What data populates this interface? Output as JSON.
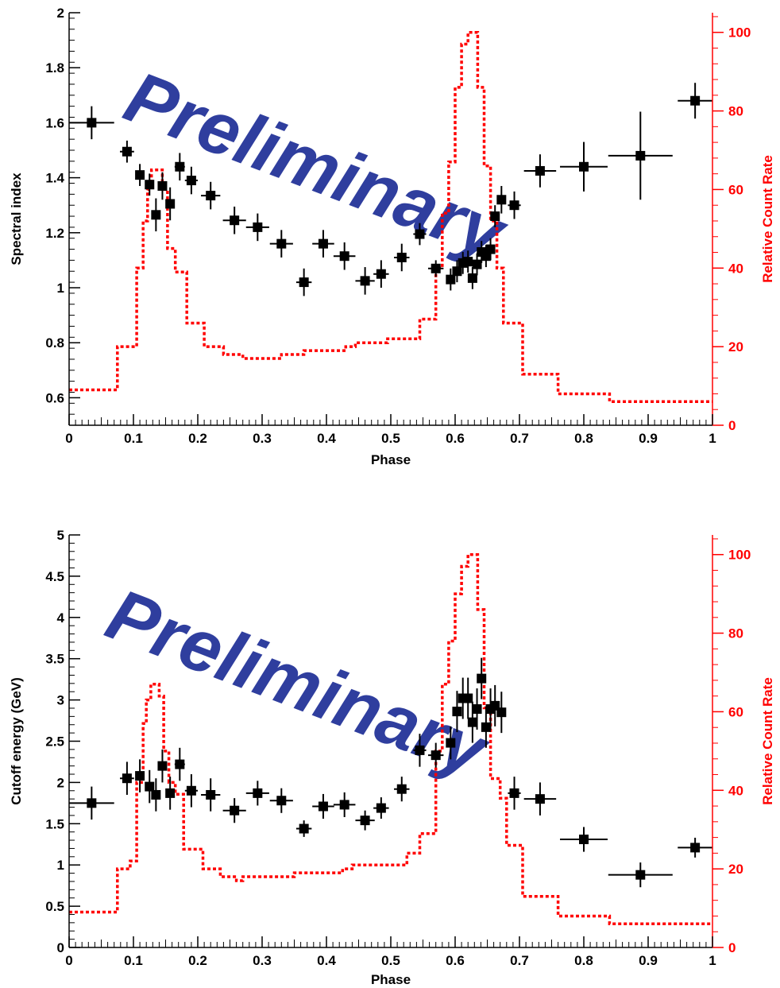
{
  "colors": {
    "points": "#000000",
    "curve": "#ff0000",
    "watermark": "#2f3e9e"
  },
  "chart_data": [
    {
      "type": "scatter",
      "watermark": "Preliminary",
      "xlabel": "Phase",
      "ylabel": "Spectral index",
      "y2label": "Relative Count Rate",
      "xlim": [
        0,
        1
      ],
      "ylim": [
        0.5,
        2
      ],
      "y2lim": [
        0,
        105
      ],
      "xticks": [
        "0",
        "0.1",
        "0.2",
        "0.3",
        "0.4",
        "0.5",
        "0.6",
        "0.7",
        "0.8",
        "0.9",
        "1"
      ],
      "yticks": [
        "0.6",
        "0.8",
        "1",
        "1.2",
        "1.4",
        "1.6",
        "1.8",
        "2"
      ],
      "y2ticks": [
        "0",
        "20",
        "40",
        "60",
        "80",
        "100"
      ],
      "points": [
        {
          "x": 0.035,
          "y": 1.6,
          "xerr": 0.035,
          "yerr": 0.06
        },
        {
          "x": 0.09,
          "y": 1.495,
          "xerr": 0.011,
          "yerr": 0.04
        },
        {
          "x": 0.11,
          "y": 1.41,
          "xerr": 0.007,
          "yerr": 0.04
        },
        {
          "x": 0.125,
          "y": 1.375,
          "xerr": 0.006,
          "yerr": 0.04
        },
        {
          "x": 0.135,
          "y": 1.265,
          "xerr": 0.005,
          "yerr": 0.06
        },
        {
          "x": 0.145,
          "y": 1.37,
          "xerr": 0.005,
          "yerr": 0.05
        },
        {
          "x": 0.157,
          "y": 1.305,
          "xerr": 0.006,
          "yerr": 0.06
        },
        {
          "x": 0.172,
          "y": 1.44,
          "xerr": 0.008,
          "yerr": 0.05
        },
        {
          "x": 0.19,
          "y": 1.39,
          "xerr": 0.01,
          "yerr": 0.05
        },
        {
          "x": 0.22,
          "y": 1.335,
          "xerr": 0.015,
          "yerr": 0.05
        },
        {
          "x": 0.257,
          "y": 1.245,
          "xerr": 0.018,
          "yerr": 0.05
        },
        {
          "x": 0.293,
          "y": 1.22,
          "xerr": 0.018,
          "yerr": 0.05
        },
        {
          "x": 0.33,
          "y": 1.16,
          "xerr": 0.018,
          "yerr": 0.05
        },
        {
          "x": 0.365,
          "y": 1.02,
          "xerr": 0.012,
          "yerr": 0.05
        },
        {
          "x": 0.395,
          "y": 1.16,
          "xerr": 0.017,
          "yerr": 0.05
        },
        {
          "x": 0.428,
          "y": 1.115,
          "xerr": 0.017,
          "yerr": 0.05
        },
        {
          "x": 0.46,
          "y": 1.025,
          "xerr": 0.015,
          "yerr": 0.05
        },
        {
          "x": 0.485,
          "y": 1.05,
          "xerr": 0.012,
          "yerr": 0.05
        },
        {
          "x": 0.517,
          "y": 1.11,
          "xerr": 0.012,
          "yerr": 0.05
        },
        {
          "x": 0.545,
          "y": 1.195,
          "xerr": 0.01,
          "yerr": 0.04
        },
        {
          "x": 0.57,
          "y": 1.07,
          "xerr": 0.012,
          "yerr": 0.03
        },
        {
          "x": 0.593,
          "y": 1.03,
          "xerr": 0.007,
          "yerr": 0.04
        },
        {
          "x": 0.603,
          "y": 1.06,
          "xerr": 0.005,
          "yerr": 0.04
        },
        {
          "x": 0.612,
          "y": 1.09,
          "xerr": 0.004,
          "yerr": 0.04
        },
        {
          "x": 0.62,
          "y": 1.095,
          "xerr": 0.004,
          "yerr": 0.04
        },
        {
          "x": 0.627,
          "y": 1.035,
          "xerr": 0.004,
          "yerr": 0.04
        },
        {
          "x": 0.634,
          "y": 1.085,
          "xerr": 0.004,
          "yerr": 0.04
        },
        {
          "x": 0.641,
          "y": 1.13,
          "xerr": 0.004,
          "yerr": 0.04
        },
        {
          "x": 0.648,
          "y": 1.115,
          "xerr": 0.004,
          "yerr": 0.04
        },
        {
          "x": 0.655,
          "y": 1.14,
          "xerr": 0.004,
          "yerr": 0.04
        },
        {
          "x": 0.662,
          "y": 1.26,
          "xerr": 0.004,
          "yerr": 0.04
        },
        {
          "x": 0.672,
          "y": 1.32,
          "xerr": 0.006,
          "yerr": 0.05
        },
        {
          "x": 0.692,
          "y": 1.3,
          "xerr": 0.01,
          "yerr": 0.05
        },
        {
          "x": 0.732,
          "y": 1.425,
          "xerr": 0.025,
          "yerr": 0.06
        },
        {
          "x": 0.8,
          "y": 1.44,
          "xerr": 0.037,
          "yerr": 0.09
        },
        {
          "x": 0.888,
          "y": 1.48,
          "xerr": 0.05,
          "yerr": 0.16
        },
        {
          "x": 0.973,
          "y": 1.68,
          "xerr": 0.027,
          "yerr": 0.065
        }
      ],
      "curve": [
        [
          0.0,
          9
        ],
        [
          0.075,
          9
        ],
        [
          0.075,
          20
        ],
        [
          0.105,
          20
        ],
        [
          0.105,
          40
        ],
        [
          0.115,
          40
        ],
        [
          0.115,
          52
        ],
        [
          0.122,
          52
        ],
        [
          0.122,
          60
        ],
        [
          0.128,
          60
        ],
        [
          0.128,
          65
        ],
        [
          0.145,
          65
        ],
        [
          0.145,
          60
        ],
        [
          0.153,
          60
        ],
        [
          0.153,
          45
        ],
        [
          0.165,
          45
        ],
        [
          0.165,
          39
        ],
        [
          0.183,
          39
        ],
        [
          0.183,
          26
        ],
        [
          0.21,
          26
        ],
        [
          0.21,
          20
        ],
        [
          0.24,
          20
        ],
        [
          0.24,
          18
        ],
        [
          0.27,
          18
        ],
        [
          0.27,
          17
        ],
        [
          0.33,
          17
        ],
        [
          0.33,
          18
        ],
        [
          0.365,
          18
        ],
        [
          0.365,
          19
        ],
        [
          0.43,
          19
        ],
        [
          0.43,
          20
        ],
        [
          0.445,
          20
        ],
        [
          0.445,
          21
        ],
        [
          0.495,
          21
        ],
        [
          0.495,
          22
        ],
        [
          0.545,
          22
        ],
        [
          0.545,
          27
        ],
        [
          0.57,
          27
        ],
        [
          0.57,
          40
        ],
        [
          0.58,
          40
        ],
        [
          0.58,
          54
        ],
        [
          0.59,
          54
        ],
        [
          0.59,
          67
        ],
        [
          0.6,
          67
        ],
        [
          0.6,
          86
        ],
        [
          0.61,
          86
        ],
        [
          0.61,
          97
        ],
        [
          0.62,
          97
        ],
        [
          0.62,
          100
        ],
        [
          0.635,
          100
        ],
        [
          0.635,
          86
        ],
        [
          0.645,
          86
        ],
        [
          0.645,
          66
        ],
        [
          0.655,
          66
        ],
        [
          0.655,
          52
        ],
        [
          0.665,
          52
        ],
        [
          0.665,
          40
        ],
        [
          0.675,
          40
        ],
        [
          0.675,
          26
        ],
        [
          0.705,
          26
        ],
        [
          0.705,
          13
        ],
        [
          0.76,
          13
        ],
        [
          0.76,
          8
        ],
        [
          0.84,
          8
        ],
        [
          0.84,
          6
        ],
        [
          1.0,
          6
        ]
      ]
    },
    {
      "type": "scatter",
      "watermark": "Preliminary",
      "xlabel": "Phase",
      "ylabel": "Cutoff energy (GeV)",
      "y2label": "Relative Count Rate",
      "xlim": [
        0,
        1
      ],
      "ylim": [
        0,
        5
      ],
      "y2lim": [
        0,
        105
      ],
      "xticks": [
        "0",
        "0.1",
        "0.2",
        "0.3",
        "0.4",
        "0.5",
        "0.6",
        "0.7",
        "0.8",
        "0.9",
        "1"
      ],
      "yticks": [
        "0",
        "0.5",
        "1",
        "1.5",
        "2",
        "2.5",
        "3",
        "3.5",
        "4",
        "4.5",
        "5"
      ],
      "y2ticks": [
        "0",
        "20",
        "40",
        "60",
        "80",
        "100"
      ],
      "points": [
        {
          "x": 0.035,
          "y": 1.75,
          "xerr": 0.035,
          "yerr": 0.2
        },
        {
          "x": 0.09,
          "y": 2.05,
          "xerr": 0.011,
          "yerr": 0.2
        },
        {
          "x": 0.11,
          "y": 2.08,
          "xerr": 0.007,
          "yerr": 0.2
        },
        {
          "x": 0.125,
          "y": 1.95,
          "xerr": 0.006,
          "yerr": 0.2
        },
        {
          "x": 0.135,
          "y": 1.85,
          "xerr": 0.005,
          "yerr": 0.2
        },
        {
          "x": 0.145,
          "y": 2.2,
          "xerr": 0.005,
          "yerr": 0.2
        },
        {
          "x": 0.157,
          "y": 1.87,
          "xerr": 0.006,
          "yerr": 0.2
        },
        {
          "x": 0.172,
          "y": 2.22,
          "xerr": 0.008,
          "yerr": 0.2
        },
        {
          "x": 0.19,
          "y": 1.9,
          "xerr": 0.01,
          "yerr": 0.2
        },
        {
          "x": 0.22,
          "y": 1.85,
          "xerr": 0.015,
          "yerr": 0.2
        },
        {
          "x": 0.257,
          "y": 1.66,
          "xerr": 0.018,
          "yerr": 0.15
        },
        {
          "x": 0.293,
          "y": 1.87,
          "xerr": 0.018,
          "yerr": 0.15
        },
        {
          "x": 0.33,
          "y": 1.78,
          "xerr": 0.018,
          "yerr": 0.15
        },
        {
          "x": 0.365,
          "y": 1.44,
          "xerr": 0.012,
          "yerr": 0.1
        },
        {
          "x": 0.395,
          "y": 1.71,
          "xerr": 0.017,
          "yerr": 0.15
        },
        {
          "x": 0.428,
          "y": 1.73,
          "xerr": 0.017,
          "yerr": 0.15
        },
        {
          "x": 0.46,
          "y": 1.54,
          "xerr": 0.015,
          "yerr": 0.12
        },
        {
          "x": 0.485,
          "y": 1.69,
          "xerr": 0.012,
          "yerr": 0.13
        },
        {
          "x": 0.517,
          "y": 1.92,
          "xerr": 0.012,
          "yerr": 0.15
        },
        {
          "x": 0.545,
          "y": 2.39,
          "xerr": 0.01,
          "yerr": 0.2
        },
        {
          "x": 0.57,
          "y": 2.33,
          "xerr": 0.012,
          "yerr": 0.15
        },
        {
          "x": 0.593,
          "y": 2.48,
          "xerr": 0.007,
          "yerr": 0.2
        },
        {
          "x": 0.603,
          "y": 2.86,
          "xerr": 0.005,
          "yerr": 0.25
        },
        {
          "x": 0.612,
          "y": 3.02,
          "xerr": 0.004,
          "yerr": 0.25
        },
        {
          "x": 0.62,
          "y": 3.02,
          "xerr": 0.004,
          "yerr": 0.25
        },
        {
          "x": 0.627,
          "y": 2.73,
          "xerr": 0.004,
          "yerr": 0.25
        },
        {
          "x": 0.634,
          "y": 2.89,
          "xerr": 0.004,
          "yerr": 0.25
        },
        {
          "x": 0.641,
          "y": 3.26,
          "xerr": 0.004,
          "yerr": 0.25
        },
        {
          "x": 0.648,
          "y": 2.67,
          "xerr": 0.004,
          "yerr": 0.25
        },
        {
          "x": 0.655,
          "y": 2.89,
          "xerr": 0.004,
          "yerr": 0.25
        },
        {
          "x": 0.662,
          "y": 2.93,
          "xerr": 0.004,
          "yerr": 0.25
        },
        {
          "x": 0.672,
          "y": 2.85,
          "xerr": 0.006,
          "yerr": 0.25
        },
        {
          "x": 0.692,
          "y": 1.87,
          "xerr": 0.01,
          "yerr": 0.2
        },
        {
          "x": 0.732,
          "y": 1.8,
          "xerr": 0.025,
          "yerr": 0.2
        },
        {
          "x": 0.8,
          "y": 1.31,
          "xerr": 0.037,
          "yerr": 0.15
        },
        {
          "x": 0.888,
          "y": 0.88,
          "xerr": 0.05,
          "yerr": 0.15
        },
        {
          "x": 0.973,
          "y": 1.21,
          "xerr": 0.027,
          "yerr": 0.12
        }
      ],
      "curve": [
        [
          0.0,
          9
        ],
        [
          0.075,
          9
        ],
        [
          0.075,
          20
        ],
        [
          0.095,
          20
        ],
        [
          0.095,
          22
        ],
        [
          0.105,
          22
        ],
        [
          0.105,
          42
        ],
        [
          0.115,
          42
        ],
        [
          0.115,
          57
        ],
        [
          0.12,
          57
        ],
        [
          0.12,
          63
        ],
        [
          0.127,
          63
        ],
        [
          0.127,
          67
        ],
        [
          0.14,
          67
        ],
        [
          0.14,
          64
        ],
        [
          0.147,
          64
        ],
        [
          0.147,
          50
        ],
        [
          0.155,
          50
        ],
        [
          0.155,
          42
        ],
        [
          0.165,
          42
        ],
        [
          0.165,
          39
        ],
        [
          0.178,
          39
        ],
        [
          0.178,
          25
        ],
        [
          0.208,
          25
        ],
        [
          0.208,
          20
        ],
        [
          0.235,
          20
        ],
        [
          0.235,
          18
        ],
        [
          0.26,
          18
        ],
        [
          0.26,
          17
        ],
        [
          0.27,
          17
        ],
        [
          0.27,
          18
        ],
        [
          0.35,
          18
        ],
        [
          0.35,
          19
        ],
        [
          0.425,
          19
        ],
        [
          0.425,
          20
        ],
        [
          0.44,
          20
        ],
        [
          0.44,
          21
        ],
        [
          0.525,
          21
        ],
        [
          0.525,
          24
        ],
        [
          0.545,
          24
        ],
        [
          0.545,
          29
        ],
        [
          0.57,
          29
        ],
        [
          0.57,
          50
        ],
        [
          0.58,
          50
        ],
        [
          0.58,
          67
        ],
        [
          0.59,
          67
        ],
        [
          0.59,
          78
        ],
        [
          0.6,
          78
        ],
        [
          0.6,
          90
        ],
        [
          0.61,
          90
        ],
        [
          0.61,
          97
        ],
        [
          0.62,
          97
        ],
        [
          0.62,
          100
        ],
        [
          0.635,
          100
        ],
        [
          0.635,
          86
        ],
        [
          0.645,
          86
        ],
        [
          0.645,
          61
        ],
        [
          0.655,
          61
        ],
        [
          0.655,
          43
        ],
        [
          0.67,
          43
        ],
        [
          0.67,
          38
        ],
        [
          0.68,
          38
        ],
        [
          0.68,
          26
        ],
        [
          0.705,
          26
        ],
        [
          0.705,
          13
        ],
        [
          0.76,
          13
        ],
        [
          0.76,
          8
        ],
        [
          0.84,
          8
        ],
        [
          0.84,
          6
        ],
        [
          1.0,
          6
        ]
      ]
    }
  ]
}
